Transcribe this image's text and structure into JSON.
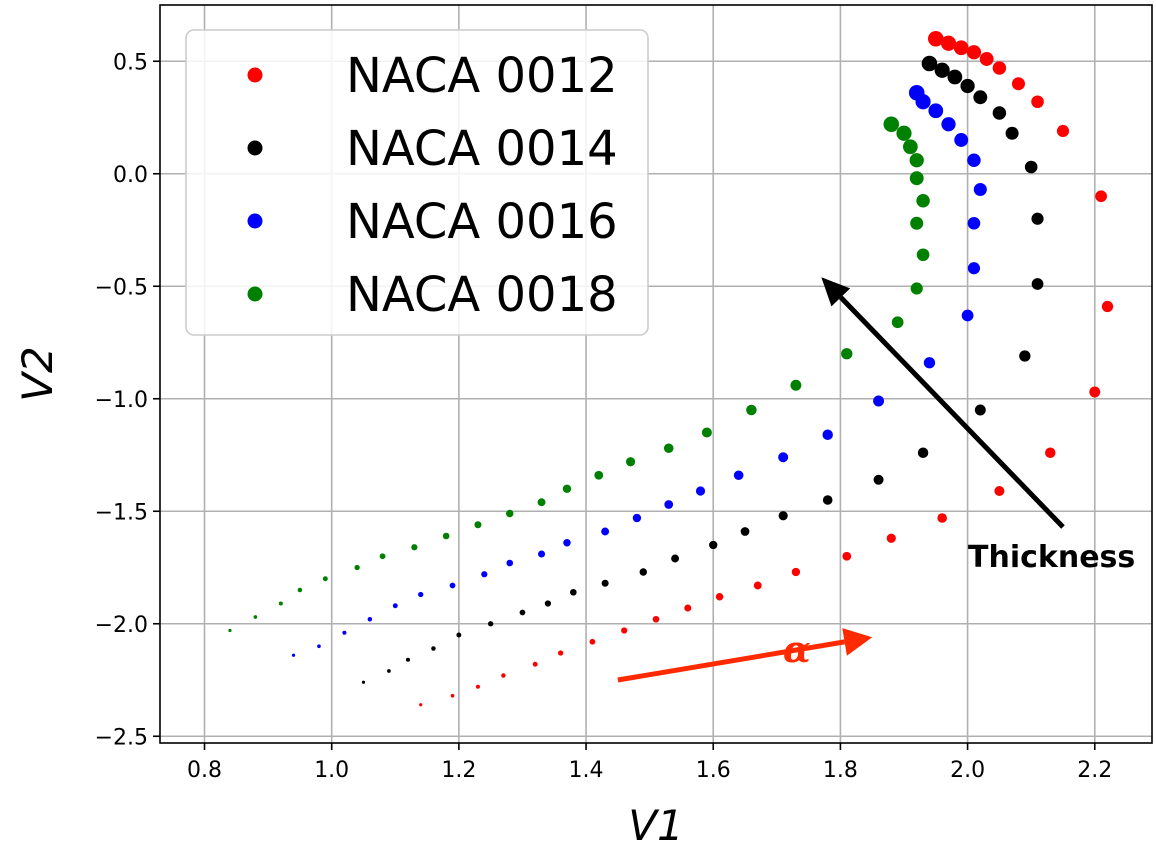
{
  "chart_data": {
    "type": "scatter",
    "title": "",
    "xlabel": "V1",
    "ylabel": "V2",
    "xlim": [
      0.73,
      2.29
    ],
    "ylim": [
      -2.53,
      0.75
    ],
    "xticks": [
      "0.8",
      "1.0",
      "1.2",
      "1.4",
      "1.6",
      "1.8",
      "2.0",
      "2.2"
    ],
    "yticks": [
      "0.5",
      "0.0",
      "−0.5",
      "−1.0",
      "−1.5",
      "−2.0",
      "−2.5"
    ],
    "grid": true,
    "legend_position": "top-left",
    "series": [
      {
        "name": "NACA 0012",
        "color": "#ff0000",
        "points": [
          [
            1.14,
            -2.36
          ],
          [
            1.19,
            -2.32
          ],
          [
            1.23,
            -2.28
          ],
          [
            1.27,
            -2.23
          ],
          [
            1.32,
            -2.18
          ],
          [
            1.36,
            -2.13
          ],
          [
            1.41,
            -2.08
          ],
          [
            1.46,
            -2.03
          ],
          [
            1.51,
            -1.98
          ],
          [
            1.56,
            -1.93
          ],
          [
            1.61,
            -1.88
          ],
          [
            1.67,
            -1.83
          ],
          [
            1.73,
            -1.77
          ],
          [
            1.81,
            -1.7
          ],
          [
            1.88,
            -1.62
          ],
          [
            1.96,
            -1.53
          ],
          [
            2.05,
            -1.41
          ],
          [
            2.13,
            -1.24
          ],
          [
            2.2,
            -0.97
          ],
          [
            2.22,
            -0.59
          ],
          [
            2.21,
            -0.1
          ],
          [
            2.15,
            0.19
          ],
          [
            2.11,
            0.32
          ],
          [
            2.08,
            0.4
          ],
          [
            2.05,
            0.47
          ],
          [
            2.03,
            0.51
          ],
          [
            2.01,
            0.54
          ],
          [
            1.99,
            0.56
          ],
          [
            1.97,
            0.58
          ],
          [
            1.95,
            0.6
          ]
        ]
      },
      {
        "name": "NACA 0014",
        "color": "#000000",
        "points": [
          [
            1.05,
            -2.26
          ],
          [
            1.09,
            -2.21
          ],
          [
            1.12,
            -2.16
          ],
          [
            1.16,
            -2.11
          ],
          [
            1.2,
            -2.05
          ],
          [
            1.25,
            -2.0
          ],
          [
            1.3,
            -1.95
          ],
          [
            1.34,
            -1.91
          ],
          [
            1.38,
            -1.86
          ],
          [
            1.43,
            -1.82
          ],
          [
            1.49,
            -1.77
          ],
          [
            1.54,
            -1.71
          ],
          [
            1.6,
            -1.65
          ],
          [
            1.65,
            -1.59
          ],
          [
            1.71,
            -1.52
          ],
          [
            1.78,
            -1.45
          ],
          [
            1.86,
            -1.36
          ],
          [
            1.93,
            -1.24
          ],
          [
            2.02,
            -1.05
          ],
          [
            2.09,
            -0.81
          ],
          [
            2.11,
            -0.49
          ],
          [
            2.11,
            -0.2
          ],
          [
            2.1,
            0.03
          ],
          [
            2.07,
            0.18
          ],
          [
            2.05,
            0.27
          ],
          [
            2.02,
            0.34
          ],
          [
            2.0,
            0.39
          ],
          [
            1.98,
            0.43
          ],
          [
            1.96,
            0.46
          ],
          [
            1.94,
            0.49
          ]
        ]
      },
      {
        "name": "NACA 0016",
        "color": "#0000ff",
        "points": [
          [
            0.94,
            -2.14
          ],
          [
            0.98,
            -2.1
          ],
          [
            1.02,
            -2.04
          ],
          [
            1.06,
            -1.98
          ],
          [
            1.1,
            -1.92
          ],
          [
            1.14,
            -1.87
          ],
          [
            1.19,
            -1.83
          ],
          [
            1.24,
            -1.78
          ],
          [
            1.28,
            -1.73
          ],
          [
            1.33,
            -1.69
          ],
          [
            1.37,
            -1.64
          ],
          [
            1.43,
            -1.59
          ],
          [
            1.48,
            -1.53
          ],
          [
            1.53,
            -1.47
          ],
          [
            1.58,
            -1.41
          ],
          [
            1.64,
            -1.34
          ],
          [
            1.71,
            -1.26
          ],
          [
            1.78,
            -1.16
          ],
          [
            1.86,
            -1.01
          ],
          [
            1.94,
            -0.84
          ],
          [
            2.0,
            -0.63
          ],
          [
            2.01,
            -0.42
          ],
          [
            2.01,
            -0.22
          ],
          [
            2.02,
            -0.07
          ],
          [
            2.01,
            0.06
          ],
          [
            1.99,
            0.15
          ],
          [
            1.97,
            0.22
          ],
          [
            1.95,
            0.28
          ],
          [
            1.93,
            0.32
          ],
          [
            1.92,
            0.36
          ]
        ]
      },
      {
        "name": "NACA 0018",
        "color": "#008000",
        "points": [
          [
            0.84,
            -2.03
          ],
          [
            0.88,
            -1.97
          ],
          [
            0.92,
            -1.91
          ],
          [
            0.95,
            -1.85
          ],
          [
            0.99,
            -1.8
          ],
          [
            1.04,
            -1.75
          ],
          [
            1.08,
            -1.7
          ],
          [
            1.13,
            -1.66
          ],
          [
            1.18,
            -1.61
          ],
          [
            1.23,
            -1.56
          ],
          [
            1.28,
            -1.51
          ],
          [
            1.33,
            -1.46
          ],
          [
            1.37,
            -1.4
          ],
          [
            1.42,
            -1.34
          ],
          [
            1.47,
            -1.28
          ],
          [
            1.53,
            -1.22
          ],
          [
            1.59,
            -1.15
          ],
          [
            1.66,
            -1.05
          ],
          [
            1.73,
            -0.94
          ],
          [
            1.81,
            -0.8
          ],
          [
            1.89,
            -0.66
          ],
          [
            1.92,
            -0.51
          ],
          [
            1.93,
            -0.36
          ],
          [
            1.92,
            -0.22
          ],
          [
            1.93,
            -0.12
          ],
          [
            1.92,
            -0.02
          ],
          [
            1.92,
            0.06
          ],
          [
            1.91,
            0.12
          ],
          [
            1.9,
            0.18
          ],
          [
            1.88,
            0.22
          ]
        ]
      }
    ],
    "annotations": {
      "thickness": {
        "label": "Thickness",
        "color": "#000000",
        "from": [
          2.15,
          -1.57
        ],
        "to": [
          1.77,
          -0.46
        ]
      },
      "alpha": {
        "label": "α",
        "color": "#ff2a00",
        "from": [
          1.45,
          -2.25
        ],
        "to": [
          1.85,
          -2.06
        ]
      }
    }
  }
}
